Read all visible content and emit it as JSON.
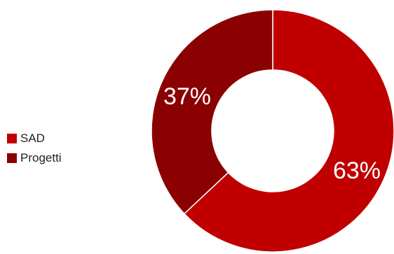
{
  "chart_data": {
    "type": "pie",
    "variant": "donut",
    "categories": [
      "SAD",
      "Progetti"
    ],
    "values": [
      63,
      37
    ],
    "data_labels": [
      "63%",
      "37%"
    ],
    "colors": [
      "#c00000",
      "#8b0000"
    ],
    "legend_position": "left",
    "title": ""
  },
  "legend": {
    "items": [
      {
        "label": "SAD",
        "color": "#c00000"
      },
      {
        "label": "Progetti",
        "color": "#8b0000"
      }
    ]
  }
}
